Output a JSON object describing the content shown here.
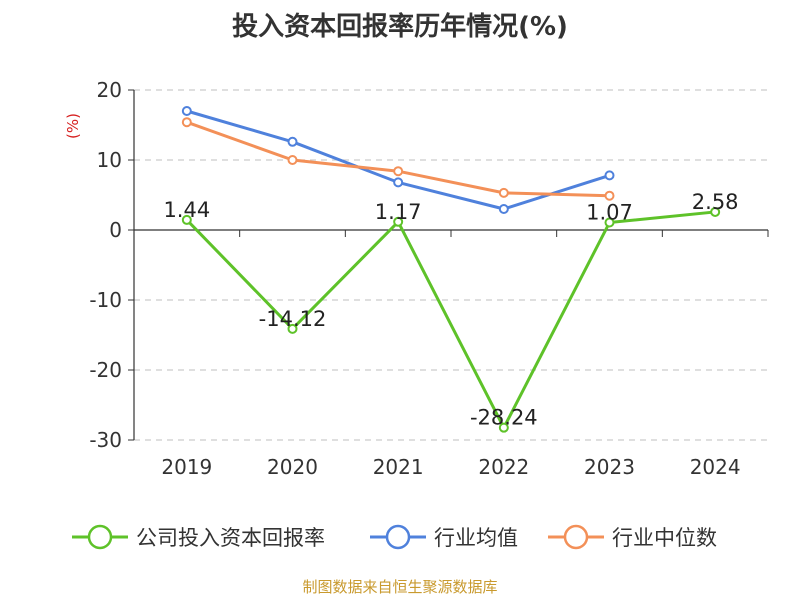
{
  "title": "投入资本回报率历年情况(%)",
  "source": "制图数据来自恒生聚源数据库",
  "chart_data": {
    "type": "line",
    "title": "投入资本回报率历年情况(%)",
    "ylabel": "(%)",
    "xlabel": "",
    "categories": [
      "2019",
      "2020",
      "2021",
      "2022",
      "2023",
      "2024"
    ],
    "ylim": [
      -30,
      20
    ],
    "yticks": [
      -30,
      -20,
      -10,
      0,
      10,
      20
    ],
    "grid": true,
    "legend_position": "bottom",
    "series": [
      {
        "name": "公司投入资本回报率",
        "color": "#5ec229",
        "values": [
          1.44,
          -14.12,
          1.17,
          -28.24,
          1.07,
          2.58
        ],
        "labels": [
          "1.44",
          "-14.12",
          "1.17",
          "-28.24",
          "1.07",
          "2.58"
        ]
      },
      {
        "name": "行业均值",
        "color": "#4f81dc",
        "values": [
          17.0,
          12.6,
          6.8,
          3.0,
          7.8,
          null
        ]
      },
      {
        "name": "行业中位数",
        "color": "#f39058",
        "values": [
          15.4,
          10.0,
          8.4,
          5.3,
          4.9,
          null
        ]
      }
    ]
  }
}
